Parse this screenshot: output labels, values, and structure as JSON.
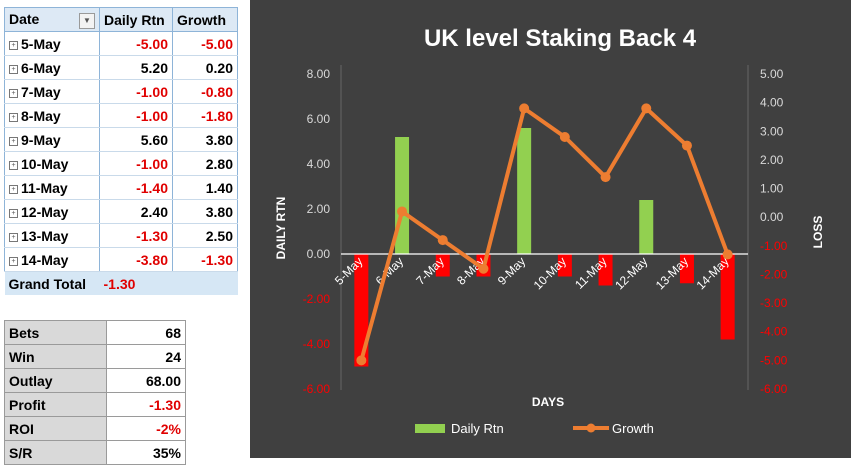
{
  "pivot": {
    "headers": {
      "date": "Date",
      "rtn": "Daily Rtn",
      "growth": "Growth"
    },
    "rows": [
      {
        "date": "5-May",
        "rtn": "-5.00",
        "growth": "-5.00"
      },
      {
        "date": "6-May",
        "rtn": "5.20",
        "growth": "0.20"
      },
      {
        "date": "7-May",
        "rtn": "-1.00",
        "growth": "-0.80"
      },
      {
        "date": "8-May",
        "rtn": "-1.00",
        "growth": "-1.80"
      },
      {
        "date": "9-May",
        "rtn": "5.60",
        "growth": "3.80"
      },
      {
        "date": "10-May",
        "rtn": "-1.00",
        "growth": "2.80"
      },
      {
        "date": "11-May",
        "rtn": "-1.40",
        "growth": "1.40"
      },
      {
        "date": "12-May",
        "rtn": "2.40",
        "growth": "3.80"
      },
      {
        "date": "13-May",
        "rtn": "-1.30",
        "growth": "2.50"
      },
      {
        "date": "14-May",
        "rtn": "-3.80",
        "growth": "-1.30"
      }
    ],
    "total": {
      "label": "Grand Total",
      "rtn": "-1.30"
    }
  },
  "stats": [
    {
      "label": "Bets",
      "value": "68"
    },
    {
      "label": "Win",
      "value": "24"
    },
    {
      "label": "Outlay",
      "value": "68.00"
    },
    {
      "label": "Profit",
      "value": "-1.30"
    },
    {
      "label": "ROI",
      "value": "-2%"
    },
    {
      "label": "S/R",
      "value": "35%"
    }
  ],
  "colors": {
    "negative_text": "#e00000",
    "bar_positive": "#92d050",
    "bar_negative": "#ff0000",
    "line": "#ed7d31",
    "chart_bg": "#404040"
  },
  "chart_data": {
    "type": "bar",
    "title": "UK level Staking Back 4",
    "xlabel": "DAYS",
    "ylabel": "DAILY RTN",
    "y2label": "LOSS",
    "categories": [
      "5-May",
      "6-May",
      "7-May",
      "8-May",
      "9-May",
      "10-May",
      "11-May",
      "12-May",
      "13-May",
      "14-May"
    ],
    "series": [
      {
        "name": "Daily Rtn",
        "type": "bar",
        "axis": "left",
        "values": [
          -5.0,
          5.2,
          -1.0,
          -1.0,
          5.6,
          -1.0,
          -1.4,
          2.4,
          -1.3,
          -3.8
        ]
      },
      {
        "name": "Growth",
        "type": "line",
        "axis": "right",
        "values": [
          -5.0,
          0.2,
          -0.8,
          -1.8,
          3.8,
          2.8,
          1.4,
          3.8,
          2.5,
          -1.3
        ]
      }
    ],
    "ylim": [
      -6,
      8
    ],
    "yticks": [
      "-6.00",
      "-4.00",
      "-2.00",
      "0.00",
      "2.00",
      "4.00",
      "6.00",
      "8.00"
    ],
    "y2lim": [
      -6,
      5
    ],
    "y2ticks": [
      "-6.00",
      "-5.00",
      "-4.00",
      "-3.00",
      "-2.00",
      "-1.00",
      "0.00",
      "1.00",
      "2.00",
      "3.00",
      "4.00",
      "5.00"
    ],
    "legend": "bottom"
  }
}
